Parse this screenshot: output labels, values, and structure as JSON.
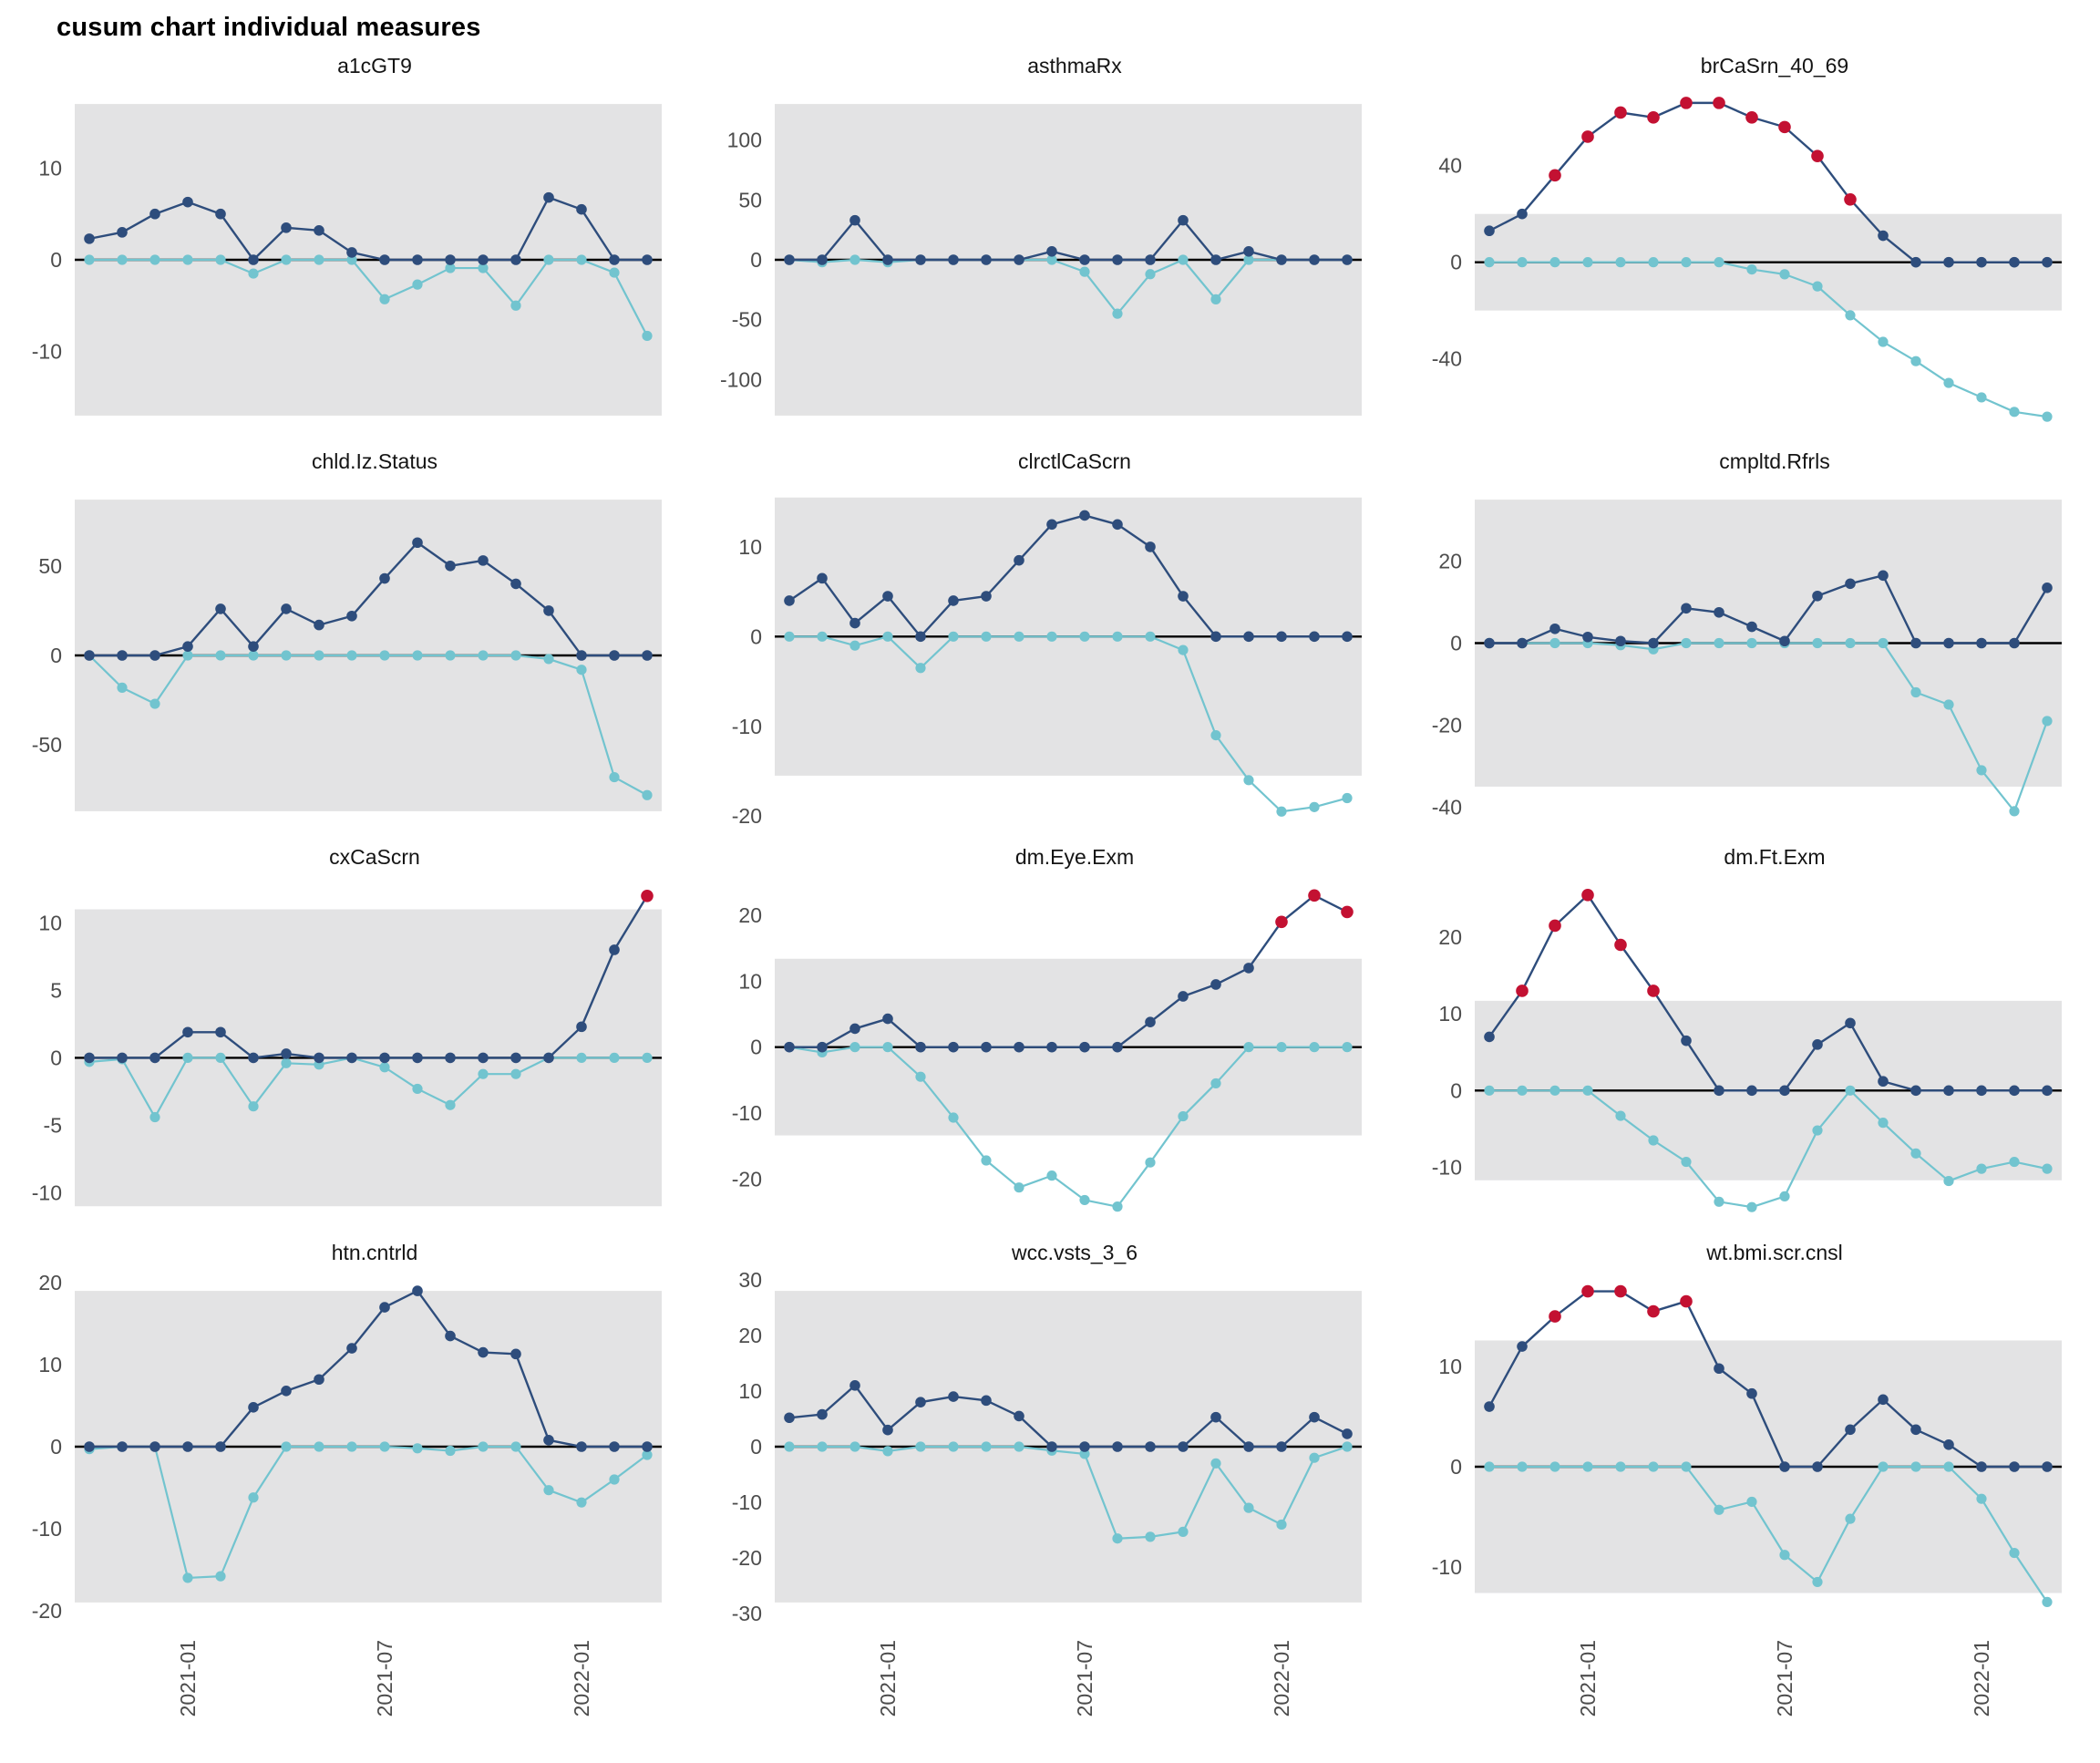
{
  "title": "cusum chart  individual measures",
  "colors": {
    "upper_series": "#2e4d7c",
    "lower_series": "#72c4cf",
    "signal": "#c31132",
    "band": "#e3e3e4",
    "zero_line": "#000000",
    "axis_text": "#4d4d4d",
    "facet_title_text": "#141414"
  },
  "x_axis": {
    "n_points": 18,
    "tick_labels": [
      "2021-01",
      "2021-07",
      "2022-01"
    ],
    "tick_indices": [
      3,
      9,
      15
    ]
  },
  "chart_data": {
    "type": "line",
    "title": "cusum chart  individual measures",
    "series_roles": [
      "upper cusum (dark navy)",
      "lower cusum (light teal)",
      "signal points (red)"
    ],
    "legend": "none",
    "grid": "off",
    "panels": [
      {
        "title": "a1cGT9",
        "yticks": [
          10,
          0,
          -10
        ],
        "ylim": [
          -18.7,
          18.7
        ],
        "band": [
          -17,
          17
        ],
        "upper": [
          2.3,
          3,
          5,
          6.3,
          5,
          0,
          3.5,
          3.2,
          0.8,
          0,
          0,
          0,
          0,
          0,
          6.8,
          5.5,
          0,
          0
        ],
        "lower": [
          0,
          0,
          0,
          0,
          0,
          -1.5,
          0,
          0,
          0,
          -4.3,
          -2.7,
          -0.9,
          -0.9,
          -5,
          0,
          0,
          -1.4,
          -8.3
        ],
        "flags": []
      },
      {
        "title": "asthmaRx",
        "yticks": [
          100,
          50,
          0,
          -50,
          -100
        ],
        "ylim": [
          -143,
          143
        ],
        "band": [
          -130,
          130
        ],
        "upper": [
          0,
          0,
          33,
          0,
          0,
          0,
          0,
          0,
          7,
          0,
          0,
          0,
          33,
          0,
          7,
          0,
          0,
          0
        ],
        "lower": [
          0,
          -2,
          0,
          -2,
          0,
          0,
          0,
          0,
          0,
          -10,
          -45,
          -12,
          0,
          -33,
          0,
          0,
          0,
          0
        ],
        "flags": []
      },
      {
        "title": "brCaSrn_40_69",
        "yticks": [
          40,
          0,
          -40
        ],
        "ylim": [
          -70,
          72
        ],
        "band": [
          -20,
          20
        ],
        "upper": [
          13,
          20,
          36,
          52,
          62,
          60,
          66,
          66,
          60,
          56,
          44,
          26,
          11,
          0,
          0,
          0,
          0,
          0
        ],
        "lower": [
          0,
          0,
          0,
          0,
          0,
          0,
          0,
          0,
          -3,
          -5,
          -10,
          -22,
          -33,
          -41,
          -50,
          -56,
          -62,
          -64
        ],
        "flags": [
          2,
          3,
          4,
          5,
          6,
          7,
          8,
          9,
          10,
          11
        ]
      },
      {
        "title": "chld.Iz.Status",
        "yticks": [
          50,
          0,
          -50
        ],
        "ylim": [
          -95.7,
          95.7
        ],
        "band": [
          -87,
          87
        ],
        "upper": [
          0,
          0,
          0,
          5,
          26,
          5,
          26,
          17,
          22,
          43,
          63,
          50,
          53,
          40,
          25,
          0,
          0,
          0
        ],
        "lower": [
          0,
          -18,
          -27,
          0,
          0,
          0,
          0,
          0,
          0,
          0,
          0,
          0,
          0,
          0,
          -2,
          -8,
          -68,
          -78
        ],
        "flags": []
      },
      {
        "title": "clrctlCaScrn",
        "yticks": [
          10,
          0,
          -10,
          -20
        ],
        "ylim": [
          -21.2,
          17
        ],
        "band": [
          -15.5,
          15.5
        ],
        "upper": [
          4,
          6.5,
          1.5,
          4.5,
          0,
          4,
          4.5,
          8.5,
          12.5,
          13.5,
          12.5,
          10,
          4.5,
          0,
          0,
          0,
          0,
          0
        ],
        "lower": [
          0,
          0,
          -1,
          0,
          -3.5,
          0,
          0,
          0,
          0,
          0,
          0,
          0,
          -1.5,
          -11,
          -16,
          -19.5,
          -19,
          -18
        ],
        "flags": []
      },
      {
        "title": "cmpltd.Rfrls",
        "yticks": [
          20,
          0,
          -20,
          -40
        ],
        "ylim": [
          -44.8,
          38.8
        ],
        "band": [
          -35,
          35
        ],
        "upper": [
          0,
          0,
          3.5,
          1.5,
          0.5,
          0,
          8.5,
          7.5,
          4,
          0.5,
          11.5,
          14.5,
          16.5,
          0,
          0,
          0,
          0,
          13.5
        ],
        "lower": [
          0,
          0,
          0,
          0,
          -0.5,
          -1.5,
          0,
          0,
          0,
          0,
          0,
          0,
          0,
          -12,
          -15,
          -31,
          -41,
          -19
        ],
        "flags": []
      },
      {
        "title": "cxCaScrn",
        "yticks": [
          10,
          5,
          0,
          -5,
          -10
        ],
        "ylim": [
          -12.2,
          13.2
        ],
        "band": [
          -11,
          11
        ],
        "upper": [
          0,
          0,
          0,
          1.9,
          1.9,
          0,
          0.3,
          0,
          0,
          0,
          0,
          0,
          0,
          0,
          0,
          2.3,
          8,
          12
        ],
        "lower": [
          -0.3,
          -0.1,
          -4.4,
          0,
          0,
          -3.6,
          -0.4,
          -0.5,
          0,
          -0.7,
          -2.3,
          -3.5,
          -1.2,
          -1.2,
          0,
          0,
          0,
          0
        ],
        "flags": [
          17
        ]
      },
      {
        "title": "dm.Eye.Exm",
        "yticks": [
          20,
          10,
          0,
          -10,
          -20
        ],
        "ylim": [
          -26.6,
          25.4
        ],
        "band": [
          -13.4,
          13.4
        ],
        "upper": [
          0,
          0,
          2.8,
          4.3,
          0,
          0,
          0,
          0,
          0,
          0,
          0,
          3.8,
          7.7,
          9.5,
          12,
          19,
          23,
          20.5
        ],
        "lower": [
          0,
          -0.8,
          0,
          0,
          -4.5,
          -10.7,
          -17.2,
          -21.3,
          -19.5,
          -23.2,
          -24.2,
          -17.5,
          -10.5,
          -5.5,
          0,
          0,
          0,
          0
        ],
        "flags": [
          15,
          16,
          17
        ]
      },
      {
        "title": "dm.Ft.Exm",
        "yticks": [
          20,
          10,
          0,
          -10
        ],
        "ylim": [
          -17.2,
          27.5
        ],
        "band": [
          -11.7,
          11.7
        ],
        "upper": [
          7,
          13,
          21.5,
          25.5,
          19,
          13,
          6.5,
          0,
          0,
          0,
          6,
          8.8,
          1.2,
          0,
          0,
          0,
          0,
          0
        ],
        "lower": [
          0,
          0,
          0,
          0,
          -3.3,
          -6.5,
          -9.3,
          -14.5,
          -15.2,
          -13.8,
          -5.2,
          0,
          -4.2,
          -8.2,
          -11.8,
          -10.2,
          -9.3,
          -10.2
        ],
        "flags": [
          1,
          2,
          3,
          4,
          5
        ]
      },
      {
        "title": "htn.cntrld",
        "yticks": [
          20,
          10,
          0,
          -10,
          -20
        ],
        "ylim": [
          -20.9,
          20.9
        ],
        "band": [
          -19,
          19
        ],
        "upper": [
          0,
          0,
          0,
          0,
          0,
          4.8,
          6.8,
          8.2,
          12,
          17,
          19,
          13.5,
          11.5,
          11.3,
          0.8,
          0,
          0,
          0
        ],
        "lower": [
          -0.3,
          0,
          0,
          -16,
          -15.8,
          -6.2,
          0,
          0,
          0,
          0,
          -0.2,
          -0.5,
          0,
          0,
          -5.3,
          -6.8,
          -4,
          -1
        ],
        "flags": []
      },
      {
        "title": "wcc.vsts_3_6",
        "yticks": [
          30,
          20,
          10,
          0,
          -10,
          -20,
          -30
        ],
        "ylim": [
          -30.8,
          30.8
        ],
        "band": [
          -28,
          28
        ],
        "upper": [
          5.2,
          5.8,
          11,
          3,
          8,
          9,
          8.3,
          5.5,
          0,
          0,
          0,
          0,
          0,
          5.3,
          0,
          0,
          5.3,
          2.3
        ],
        "lower": [
          0,
          0,
          0,
          -0.8,
          0,
          0,
          0,
          0,
          -0.7,
          -1.3,
          -16.5,
          -16.2,
          -15.3,
          -3,
          -11,
          -14,
          -2,
          0
        ],
        "flags": []
      },
      {
        "title": "wt.bmi.scr.cnsl",
        "yticks": [
          10,
          0,
          -10
        ],
        "ylim": [
          -15.1,
          19.1
        ],
        "band": [
          -12.6,
          12.6
        ],
        "upper": [
          6,
          12,
          15,
          17.5,
          17.5,
          15.5,
          16.5,
          9.8,
          7.3,
          0,
          0,
          3.7,
          6.7,
          3.7,
          2.2,
          0,
          0,
          0
        ],
        "lower": [
          0,
          0,
          0,
          0,
          0,
          0,
          0,
          -4.3,
          -3.5,
          -8.8,
          -11.5,
          -5.2,
          0,
          0,
          0,
          -3.2,
          -8.6,
          -13.5
        ],
        "flags": [
          2,
          3,
          4,
          5,
          6
        ]
      }
    ]
  }
}
